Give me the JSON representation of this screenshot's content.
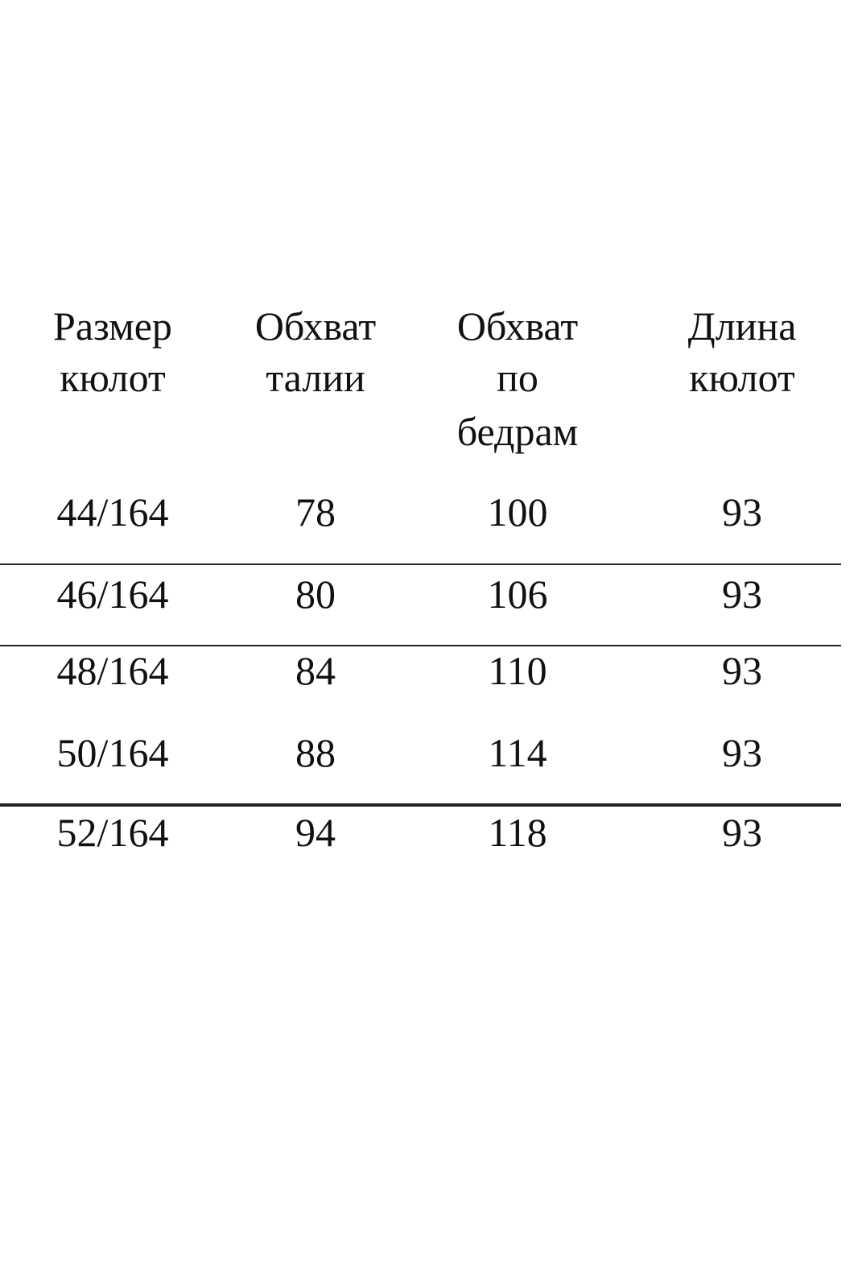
{
  "table": {
    "header": [
      [
        "Размер",
        "кюлот"
      ],
      [
        "Обхват",
        "талии"
      ],
      [
        "Обхват",
        "по",
        "бедрам"
      ],
      [
        "Длина",
        "кюлот"
      ]
    ],
    "rows": [
      [
        "44/164",
        78,
        100,
        93
      ],
      [
        "46/164",
        80,
        106,
        93
      ],
      [
        "48/164",
        84,
        110,
        93
      ],
      [
        "50/164",
        88,
        114,
        93
      ],
      [
        "52/164",
        94,
        118,
        93
      ]
    ]
  }
}
